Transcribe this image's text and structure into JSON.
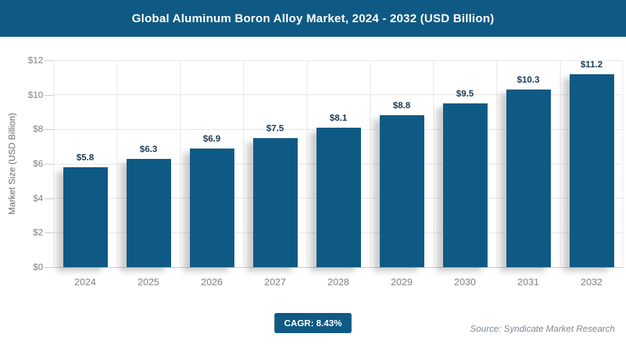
{
  "header": {
    "title": "Global Aluminum Boron Alloy Market, 2024 - 2032 (USD Billion)"
  },
  "chart_data": {
    "type": "bar",
    "title": "Global Aluminum Boron Alloy Market, 2024 - 2032 (USD Billion)",
    "categories": [
      "2024",
      "2025",
      "2026",
      "2027",
      "2028",
      "2029",
      "2030",
      "2031",
      "2032"
    ],
    "values": [
      5.8,
      6.3,
      6.9,
      7.5,
      8.1,
      8.8,
      9.5,
      10.3,
      11.2
    ],
    "bar_labels": [
      "$5.8",
      "$6.3",
      "$6.9",
      "$7.5",
      "$8.1",
      "$8.8",
      "$9.5",
      "$10.3",
      "$11.2"
    ],
    "xlabel": "",
    "ylabel": "Market Size (USD Billion)",
    "ylim": [
      0,
      12
    ],
    "ytick_step": 2,
    "ytick_labels": [
      "$0",
      "$2",
      "$4",
      "$6",
      "$8",
      "$10",
      "$12"
    ],
    "grid": "both",
    "legend_position": "none",
    "bar_color": "#0f5a84"
  },
  "footer": {
    "cagr_label": "CAGR: 8.43%",
    "source": "Source: Syndicate Market Research"
  },
  "colors": {
    "accent_blue": "#0f5a84",
    "value_label": "#1e3c56",
    "gridline": "#e4e4e4",
    "axis_line": "#c6c6c6",
    "tick_text": "#7f7f7f",
    "source_text": "#7b8a98"
  }
}
